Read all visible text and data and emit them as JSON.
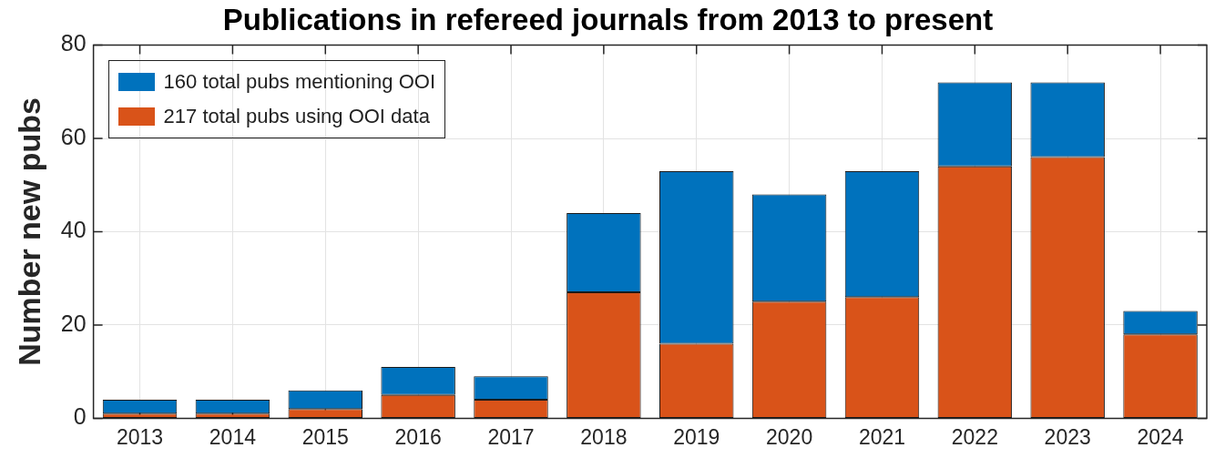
{
  "chart_data": {
    "type": "bar",
    "title": "Publications in refereed journals from 2013 to present",
    "ylabel": "Number new pubs",
    "categories": [
      "2013",
      "2014",
      "2015",
      "2016",
      "2017",
      "2018",
      "2019",
      "2020",
      "2021",
      "2022",
      "2023",
      "2024"
    ],
    "stacked": true,
    "series": [
      {
        "name": "217 total pubs using OOI data",
        "color": "#d95319",
        "values": [
          1,
          1,
          2,
          5,
          4,
          27,
          16,
          25,
          26,
          54,
          56,
          18
        ]
      },
      {
        "name": "160 total pubs mentioning OOI",
        "color": "#0072bd",
        "values": [
          3,
          3,
          4,
          6,
          5,
          17,
          37,
          23,
          27,
          18,
          16,
          5
        ]
      }
    ],
    "ylim": [
      0,
      80
    ],
    "yticks": [
      0,
      20,
      40,
      60,
      80
    ],
    "grid": true,
    "legend": "top left"
  }
}
